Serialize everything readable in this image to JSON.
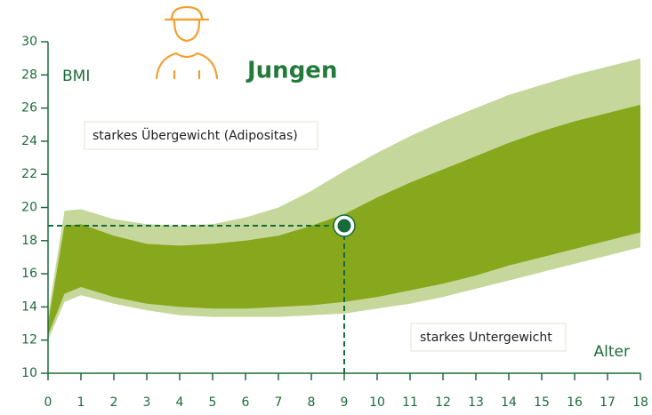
{
  "chart_data": {
    "type": "band",
    "y_label": "BMI",
    "title": "Jungen",
    "x_label": "Alter",
    "annotations": [
      "starkes Übergewicht (Adipositas)",
      "starkes Untergewicht"
    ],
    "x": [
      0,
      0.5,
      1,
      2,
      3,
      4,
      5,
      6,
      7,
      8,
      9,
      10,
      11,
      12,
      13,
      14,
      15,
      16,
      17,
      18
    ],
    "bands": [
      {
        "color": "#c6d79b",
        "upper": [
          13.5,
          19.8,
          19.9,
          19.3,
          19.0,
          18.9,
          19.0,
          19.4,
          20.0,
          21.0,
          22.2,
          23.3,
          24.3,
          25.2,
          26.0,
          26.8,
          27.4,
          28.0,
          28.5,
          29.0
        ],
        "lower": [
          12.0,
          14.3,
          14.7,
          14.2,
          13.8,
          13.5,
          13.4,
          13.4,
          13.4,
          13.5,
          13.6,
          13.9,
          14.2,
          14.6,
          15.1,
          15.6,
          16.1,
          16.6,
          17.1,
          17.6
        ]
      },
      {
        "color": "#87a81d",
        "upper": [
          13.0,
          18.9,
          19.0,
          18.3,
          17.8,
          17.7,
          17.8,
          18.0,
          18.3,
          18.9,
          19.6,
          20.6,
          21.5,
          22.3,
          23.1,
          23.9,
          24.6,
          25.2,
          25.7,
          26.2
        ],
        "lower": [
          12.3,
          14.8,
          15.2,
          14.6,
          14.2,
          14.0,
          13.9,
          13.9,
          14.0,
          14.1,
          14.3,
          14.6,
          15.0,
          15.4,
          15.9,
          16.5,
          17.0,
          17.5,
          18.0,
          18.5
        ]
      }
    ],
    "point": {
      "x": 9,
      "y": 18.9,
      "color": "#156b3c"
    },
    "xlim": [
      0,
      18
    ],
    "xticks": [
      0,
      1,
      2,
      3,
      4,
      5,
      6,
      7,
      8,
      9,
      10,
      11,
      12,
      13,
      14,
      15,
      16,
      17,
      18
    ],
    "ylim": [
      10,
      30
    ],
    "yticks": [
      10,
      12,
      14,
      16,
      18,
      20,
      22,
      24,
      26,
      28,
      30
    ]
  }
}
